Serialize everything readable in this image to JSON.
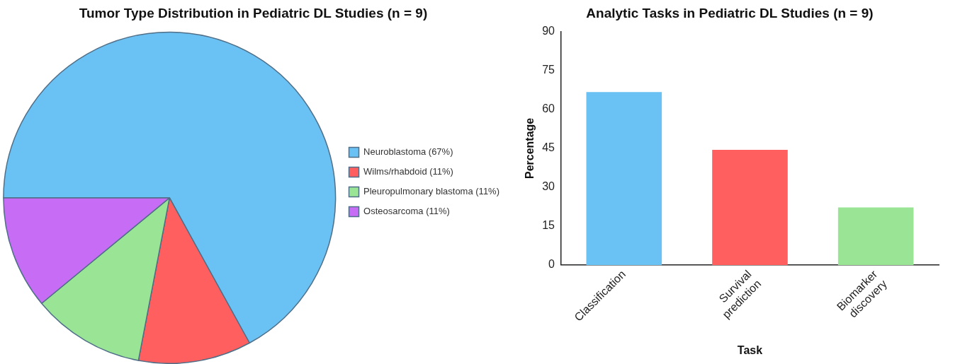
{
  "chart_data": [
    {
      "type": "pie",
      "title": "Tumor Type Distribution in Pediatric DL Studies (n = 9)",
      "categories": [
        "Neuroblastoma (67%)",
        "Wilms/rhabdoid (11%)",
        "Pleuropulmonary blastoma (11%)",
        "Osteosarcoma (11%)"
      ],
      "values": [
        67,
        11,
        11,
        11
      ],
      "colors": [
        "#6ac1f4",
        "#ff5f5f",
        "#9ae495",
        "#c66cf5"
      ],
      "legend": "right"
    },
    {
      "type": "bar",
      "title": "Analytic Tasks in Pediatric DL Studies (n = 9)",
      "xlabel": "Task",
      "ylabel": "Percentage",
      "categories": [
        "Classification",
        "Survival prediction",
        "Biomarker discovery"
      ],
      "values": [
        66.7,
        44.4,
        22.2
      ],
      "colors": [
        "#6ac1f4",
        "#ff5f5f",
        "#9ae495"
      ],
      "ylim": [
        0,
        90
      ],
      "yticks": [
        0,
        15,
        30,
        45,
        60,
        75,
        90
      ],
      "grid": false,
      "legend": false
    }
  ]
}
